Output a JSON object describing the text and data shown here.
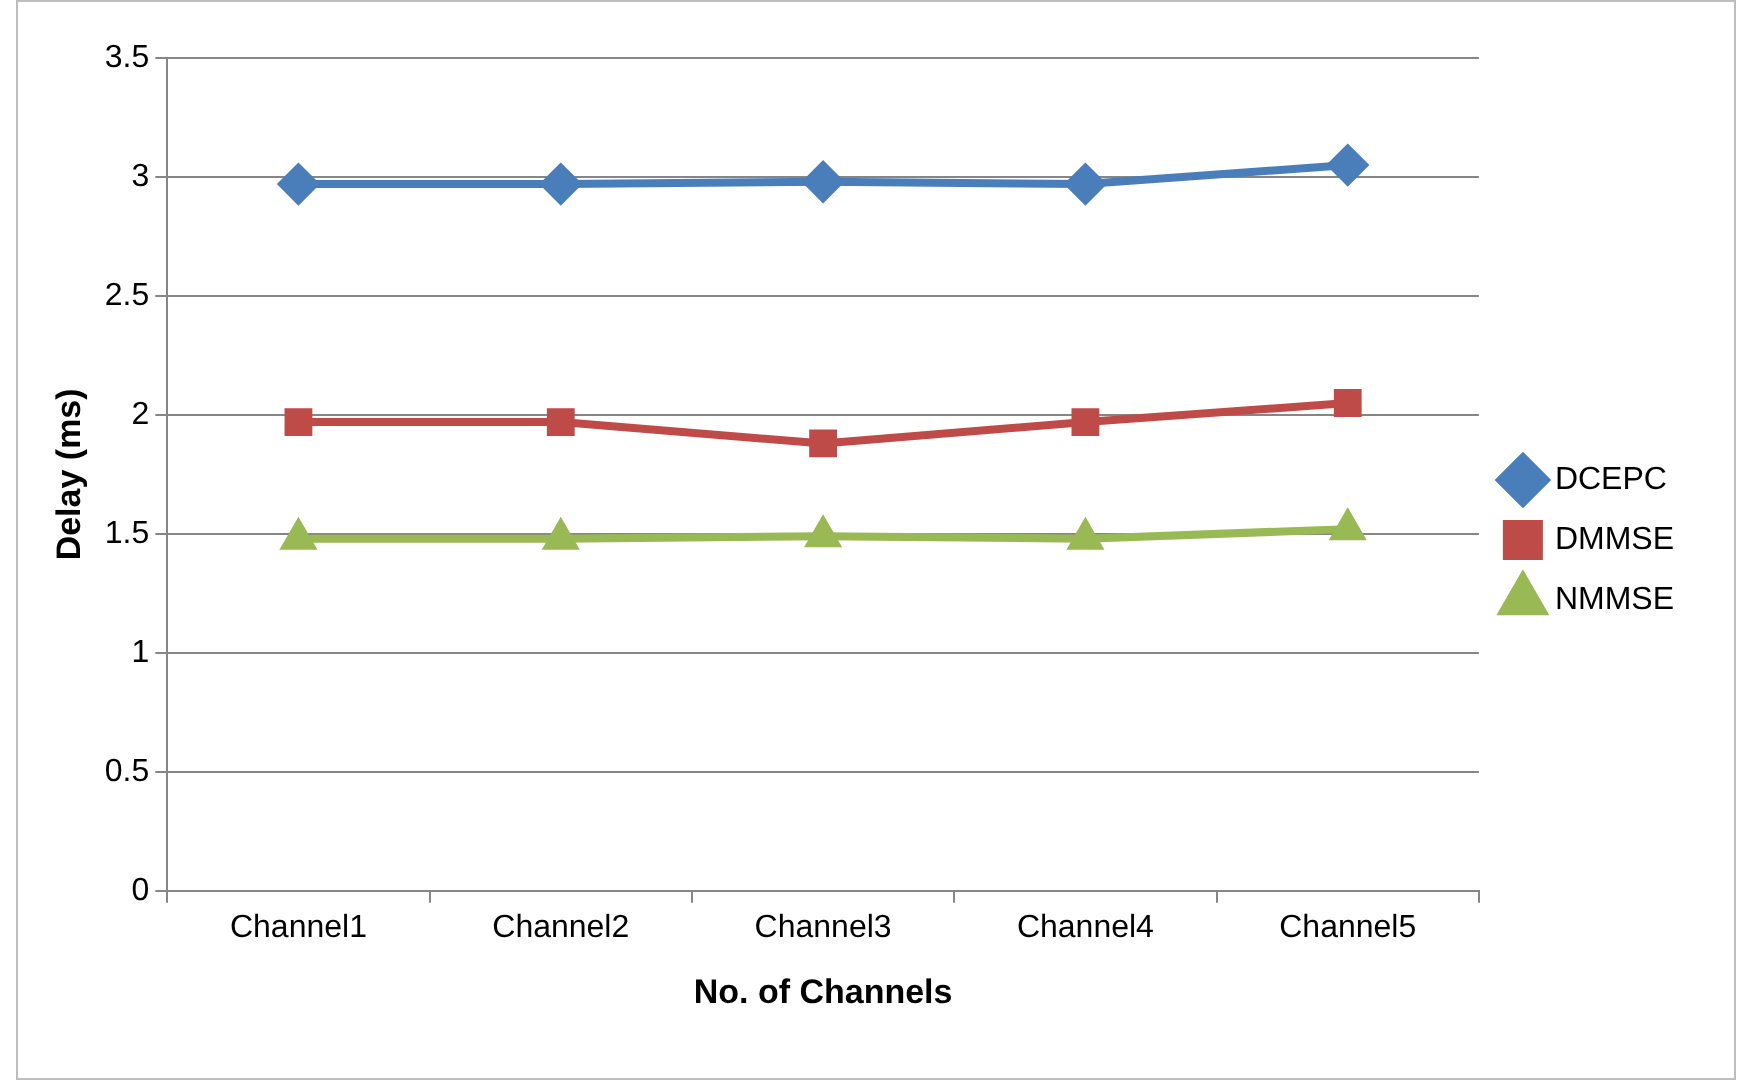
{
  "chart_data": {
    "type": "line",
    "xlabel": "No. of Channels",
    "ylabel": "Delay (ms)",
    "categories": [
      "Channel1",
      "Channel2",
      "Channel3",
      "Channel4",
      "Channel5"
    ],
    "series": [
      {
        "name": "DCEPC",
        "color": "#4a7ebb",
        "marker": "diamond",
        "values": [
          2.97,
          2.97,
          2.98,
          2.97,
          3.05
        ]
      },
      {
        "name": "DMMSE",
        "color": "#be4b48",
        "marker": "square",
        "values": [
          1.97,
          1.97,
          1.88,
          1.97,
          2.05
        ]
      },
      {
        "name": "NMMSE",
        "color": "#98b954",
        "marker": "triangle",
        "values": [
          1.48,
          1.48,
          1.49,
          1.48,
          1.52
        ]
      }
    ],
    "ylim": [
      0,
      3.5
    ],
    "yticks": [
      0,
      0.5,
      1,
      1.5,
      2,
      2.5,
      3,
      3.5
    ],
    "grid": "y",
    "legend": "right"
  }
}
